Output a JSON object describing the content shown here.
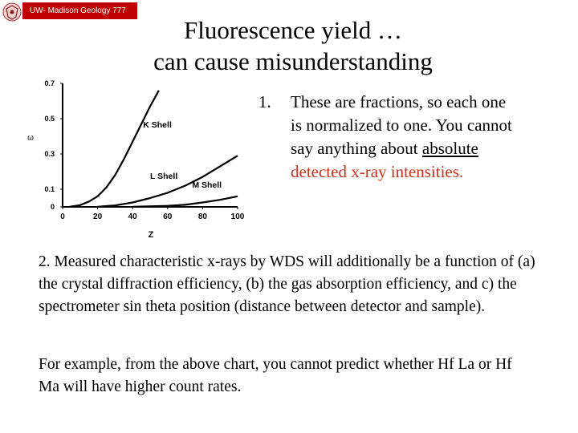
{
  "header": {
    "banner": "UW- Madison Geology  777",
    "title_line1": "Fluorescence yield …",
    "title_line2": "can cause misunderstanding"
  },
  "colors": {
    "banner": "#c00000",
    "highlight": "#c83218"
  },
  "chart_data": {
    "type": "line",
    "xlabel": "Z",
    "ylabel": "ω",
    "xlim": [
      0,
      100
    ],
    "ylim": [
      0,
      0.7
    ],
    "x_ticks": [
      "0",
      "20",
      "40",
      "60",
      "80",
      "100"
    ],
    "y_ticks": [
      "0",
      "0.1",
      "0.3",
      "0.5",
      "0.7"
    ],
    "series": [
      {
        "name": "K Shell",
        "x": [
          4,
          10,
          15,
          20,
          25,
          30,
          35,
          40,
          45,
          50,
          55
        ],
        "y": [
          0.001,
          0.01,
          0.03,
          0.06,
          0.11,
          0.18,
          0.27,
          0.37,
          0.47,
          0.57,
          0.66
        ]
      },
      {
        "name": "L Shell",
        "x": [
          20,
          30,
          40,
          50,
          60,
          70,
          80,
          90,
          100
        ],
        "y": [
          0.001,
          0.008,
          0.025,
          0.05,
          0.08,
          0.12,
          0.17,
          0.23,
          0.29
        ]
      },
      {
        "name": "M Shell",
        "x": [
          40,
          60,
          70,
          80,
          90,
          100
        ],
        "y": [
          0.001,
          0.006,
          0.012,
          0.025,
          0.04,
          0.06
        ]
      }
    ]
  },
  "point1": {
    "number": "1.",
    "before": "These are fractions, so each one is normalized to one. You cannot say anything about ",
    "absolute": "absolute",
    "red": " detected x-ray intensities."
  },
  "paragraph2": "2. Measured characteristic x-rays by WDS will additionally be a function of (a) the crystal diffraction efficiency, (b) the gas absorption efficiency, and c) the spectrometer sin theta position (distance between detector and sample).",
  "paragraph3": "For example, from the above chart, you cannot predict whether Hf La or Hf Ma will have higher count rates."
}
